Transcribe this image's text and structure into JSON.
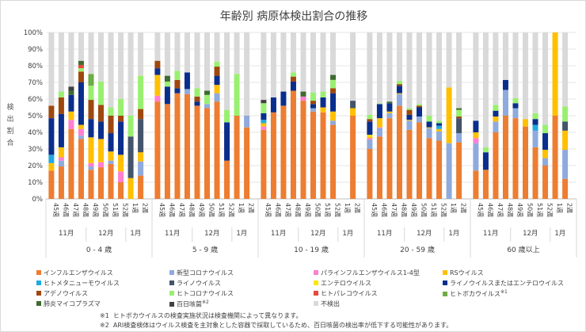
{
  "chart_data": {
    "type": "bar",
    "stacked": true,
    "title": "年齢別 病原体検出割合の推移",
    "ylabel": "検出割合",
    "ylim": [
      0,
      100
    ],
    "yticks": [
      "0%",
      "10%",
      "20%",
      "30%",
      "40%",
      "50%",
      "60%",
      "70%",
      "80%",
      "90%",
      "100%"
    ],
    "grid": true,
    "legend_placement": "bottom",
    "groups": [
      {
        "label": "0 - 4 歳"
      },
      {
        "label": "5 - 9 歳"
      },
      {
        "label": "10 - 19 歳"
      },
      {
        "label": "20 - 59 歳"
      },
      {
        "label": "60 歳以上"
      }
    ],
    "weeks": [
      "45週",
      "46週",
      "47週",
      "48週",
      "49週",
      "50週",
      "51週",
      "52週",
      "1週",
      "2週"
    ],
    "months": [
      {
        "label": "11月",
        "weeks": [
          "45週",
          "46週",
          "47週",
          "48週"
        ]
      },
      {
        "label": "12月",
        "weeks": [
          "49週",
          "50週",
          "51週",
          "52週"
        ]
      },
      {
        "label": "1月",
        "weeks": [
          "1週",
          "2週"
        ]
      }
    ],
    "series": [
      {
        "name": "インフルエンザウイルス",
        "color": "#ED7D31",
        "values": [
          17,
          19.5,
          42,
          36,
          17.5,
          19,
          21,
          10,
          0,
          14,
          58.5,
          57,
          63.5,
          63,
          56,
          54.5,
          58.5,
          23,
          50,
          43,
          41.5,
          52,
          56,
          65,
          59,
          52.5,
          52,
          44.5,
          null,
          50,
          30,
          37.5,
          48.5,
          56,
          41.5,
          46,
          36.5,
          35,
          0,
          34,
          17,
          17.5,
          40,
          50,
          48.5,
          43.5,
          31,
          20,
          50,
          12
        ]
      },
      {
        "name": "新型コロナウイルス",
        "color": "#8FAADC",
        "values": [
          0,
          3.5,
          0,
          2,
          2,
          0,
          2,
          0,
          0,
          8.5,
          0,
          0,
          0,
          3,
          0,
          2.5,
          5,
          0,
          0,
          7,
          0,
          0,
          0,
          0,
          0,
          2,
          0,
          2.5,
          null,
          0,
          5.5,
          5,
          3,
          7,
          5.5,
          3.5,
          6,
          5.5,
          33.5,
          5.5,
          16.5,
          0,
          6.5,
          15.5,
          6,
          0,
          10,
          4.5,
          0,
          17.5
        ]
      },
      {
        "name": "パラインフルエンザウイルス1-4型",
        "color": "#FF7FD0",
        "values": [
          0,
          2,
          5.5,
          4,
          2,
          3,
          0,
          6.5,
          0,
          0,
          3.5,
          0,
          0,
          0,
          0,
          0,
          0,
          0,
          0,
          0,
          2,
          0,
          0,
          0,
          2.5,
          0,
          0,
          0,
          null,
          0,
          1,
          0.5,
          0,
          0,
          0,
          0,
          0,
          0,
          0,
          0,
          3,
          0,
          0,
          0,
          0,
          0,
          0,
          0,
          0,
          0
        ]
      },
      {
        "name": "RSウイルス",
        "color": "#FFC000",
        "values": [
          4.5,
          6,
          5,
          2.5,
          15.5,
          14,
          5.5,
          10,
          12.5,
          5.5,
          12.5,
          0,
          0,
          0,
          0,
          0,
          5,
          0,
          0,
          0,
          2,
          0,
          0,
          0,
          0,
          0,
          3,
          5.5,
          null,
          4.5,
          1,
          5.5,
          1,
          0.5,
          0.5,
          0,
          0.5,
          1.5,
          33.5,
          0,
          3.5,
          0,
          3,
          0,
          0,
          4.5,
          0,
          5,
          50,
          11.5
        ]
      },
      {
        "name": "ヒトメタニューモウイルス",
        "color": "#21A9E1",
        "values": [
          5,
          0,
          0,
          0,
          0,
          0,
          0,
          0,
          0,
          0,
          0,
          0,
          0,
          0,
          0,
          0,
          0,
          0,
          0,
          0,
          2,
          0,
          0,
          0,
          0,
          0,
          0,
          0,
          null,
          0,
          0,
          0,
          0,
          0,
          0,
          0,
          0,
          2,
          0,
          0,
          0,
          0,
          0,
          0,
          0,
          0,
          3.5,
          0,
          0,
          0
        ]
      },
      {
        "name": "ライノウイルス",
        "color": "#44546A",
        "values": [
          0,
          0,
          0,
          0,
          0,
          0,
          0,
          0,
          25,
          20,
          0,
          0,
          0,
          0,
          0,
          0,
          0,
          0,
          0,
          0,
          0,
          0,
          0,
          0,
          0,
          0,
          0,
          0,
          null,
          4.5,
          0,
          0,
          0,
          0,
          0,
          0,
          0,
          0,
          0,
          9,
          0,
          0,
          0,
          0,
          0,
          0,
          0,
          0,
          0,
          5.5
        ]
      },
      {
        "name": "エンテロウイルス",
        "color": "#FFE600",
        "values": [
          0,
          0,
          0,
          0,
          0,
          0,
          0,
          0,
          0,
          0,
          0,
          0,
          0,
          0,
          0,
          0,
          0,
          0,
          0,
          0,
          0,
          0,
          0,
          0,
          0,
          0,
          0,
          0,
          null,
          0,
          1,
          0,
          0,
          0,
          0,
          0,
          0,
          0,
          0,
          0,
          0,
          0,
          0,
          0,
          0,
          0,
          0,
          0,
          0,
          0
        ]
      },
      {
        "name": "ライノウイルスまたはエンテロウイルス",
        "color": "#0A2E8C",
        "values": [
          22,
          20,
          10,
          25.5,
          11,
          10.5,
          11,
          20,
          0,
          0,
          4,
          10.5,
          3,
          10,
          2.5,
          0,
          5.5,
          23,
          0,
          0,
          4,
          9,
          8.5,
          5.5,
          0,
          2.5,
          6,
          11,
          null,
          0,
          8,
          8.5,
          5,
          4.5,
          3,
          5.5,
          3.5,
          1.5,
          0,
          0,
          7,
          10.5,
          3.5,
          6,
          3,
          0,
          3.5,
          10,
          0,
          0
        ]
      },
      {
        "name": "アデノウイルス",
        "color": "#9E480E",
        "values": [
          7.5,
          10,
          0,
          6.5,
          11.5,
          10,
          10.5,
          3.5,
          0,
          6,
          4.5,
          0,
          5,
          0,
          3,
          0,
          5.5,
          0,
          0,
          0,
          0,
          0,
          0,
          3,
          0,
          2,
          0,
          3,
          null,
          0,
          1.5,
          0,
          0,
          1,
          3,
          1,
          0,
          0,
          0,
          1,
          0,
          0,
          0,
          0,
          0,
          0,
          0,
          0,
          0,
          0
        ]
      },
      {
        "name": "ヒトコロナウイルス",
        "color": "#99F070",
        "values": [
          0,
          3.5,
          0,
          2,
          8.5,
          14,
          5,
          10,
          12.5,
          20,
          0,
          3,
          5.5,
          0,
          5,
          5.5,
          3,
          7.5,
          25,
          0,
          6,
          0,
          0,
          2.5,
          0,
          5,
          3.5,
          5,
          null,
          0,
          2.5,
          0.5,
          0,
          2,
          1,
          1,
          3.5,
          1.5,
          0,
          4,
          0,
          3,
          3.5,
          0,
          3,
          0,
          3.5,
          5,
          0,
          9
        ]
      },
      {
        "name": "ヒトパレコウイルス",
        "color": "#E8483C",
        "values": [
          0,
          0,
          0,
          2,
          0,
          0,
          0,
          0,
          0,
          0,
          0,
          0,
          0,
          0,
          0,
          0,
          0,
          0,
          0,
          0,
          0,
          0,
          0,
          0,
          0,
          0,
          0,
          0,
          null,
          0,
          0,
          0,
          0,
          0,
          0,
          0,
          0,
          0,
          0,
          0,
          0,
          0,
          0,
          0,
          0,
          0,
          0,
          0,
          0,
          0
        ]
      },
      {
        "name": "ヒトボカウイルス",
        "note": "※1",
        "color": "#6FAC46",
        "values": [
          0,
          0,
          0,
          0,
          7,
          0,
          0,
          0,
          0,
          0,
          0,
          0,
          0,
          0,
          0,
          0,
          0,
          0,
          0,
          0,
          0,
          0,
          0,
          0,
          0,
          0,
          0,
          0,
          null,
          0,
          0,
          0,
          0,
          0,
          0,
          0,
          0,
          0,
          0,
          0,
          0,
          0,
          0,
          0,
          0,
          0,
          0,
          0,
          0,
          0
        ]
      },
      {
        "name": "肺炎マイコプラズマ",
        "color": "#3E6B30",
        "values": [
          0,
          0,
          2.5,
          2.5,
          0,
          0,
          0,
          0,
          0,
          0,
          0,
          3.5,
          0,
          0,
          0,
          2.5,
          0,
          0,
          0,
          0,
          0,
          0,
          0,
          0,
          3,
          0,
          0,
          3,
          null,
          0,
          0,
          0,
          1,
          0,
          0,
          0,
          0,
          0,
          0,
          1,
          0,
          0,
          0,
          0,
          0,
          0,
          0,
          0,
          0,
          0
        ]
      },
      {
        "name": "百日咳菌",
        "note": "※2",
        "color": "#404040",
        "values": [
          0,
          0,
          2.5,
          0,
          0,
          0,
          0,
          0,
          0,
          0,
          0,
          0,
          0,
          0,
          0,
          0,
          0,
          0,
          0,
          0,
          2,
          0,
          0,
          0,
          0,
          0,
          0,
          0,
          null,
          0,
          0,
          0,
          0,
          0,
          0,
          0,
          0,
          0,
          0,
          0,
          0,
          0,
          0,
          0,
          0,
          0,
          0,
          0,
          0,
          0
        ]
      },
      {
        "name": "不検出",
        "color": "#D9D9D9",
        "values": [
          44,
          35.5,
          32.5,
          17,
          25,
          29.5,
          45,
          40,
          50,
          26,
          17,
          26,
          23,
          24,
          33.5,
          35,
          17.5,
          46.5,
          25,
          50,
          40.5,
          39,
          35.5,
          24,
          35.5,
          36,
          35.5,
          25.5,
          null,
          41,
          49.5,
          42.5,
          41.5,
          29,
          45.5,
          43,
          50,
          53,
          33,
          45.5,
          53,
          69,
          43.5,
          28.5,
          39.5,
          52,
          48.5,
          55.5,
          0,
          44.5
        ]
      }
    ]
  },
  "notes": [
    {
      "mark": "※1",
      "text": "ヒトボカウイルスの検査実施状況は検査機関によって異なります。"
    },
    {
      "mark": "※2",
      "text": "ARI検査検体はウイルス検査を主対象とした容器で採取しているため、百日咳菌の検出率が低下する可能性があります。"
    }
  ]
}
